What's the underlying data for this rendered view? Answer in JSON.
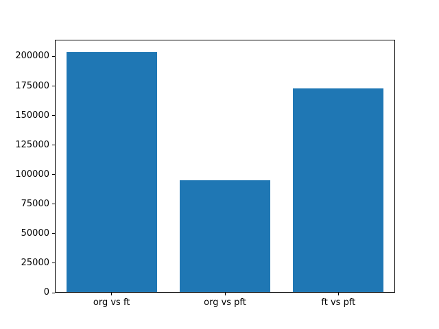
{
  "chart_data": {
    "type": "bar",
    "categories": [
      "org vs ft",
      "org vs pft",
      "ft vs pft"
    ],
    "values": [
      204000,
      95000,
      173000
    ],
    "title": "",
    "xlabel": "",
    "ylabel": "",
    "ylim": [
      0,
      214200
    ],
    "yticks": [
      0,
      25000,
      50000,
      75000,
      100000,
      125000,
      150000,
      175000,
      200000
    ],
    "bar_color": "#1f77b4",
    "background_color": "#ffffff",
    "spine_color": "#000000",
    "grid": false,
    "legend": null,
    "bar_width_fraction": 0.8
  }
}
